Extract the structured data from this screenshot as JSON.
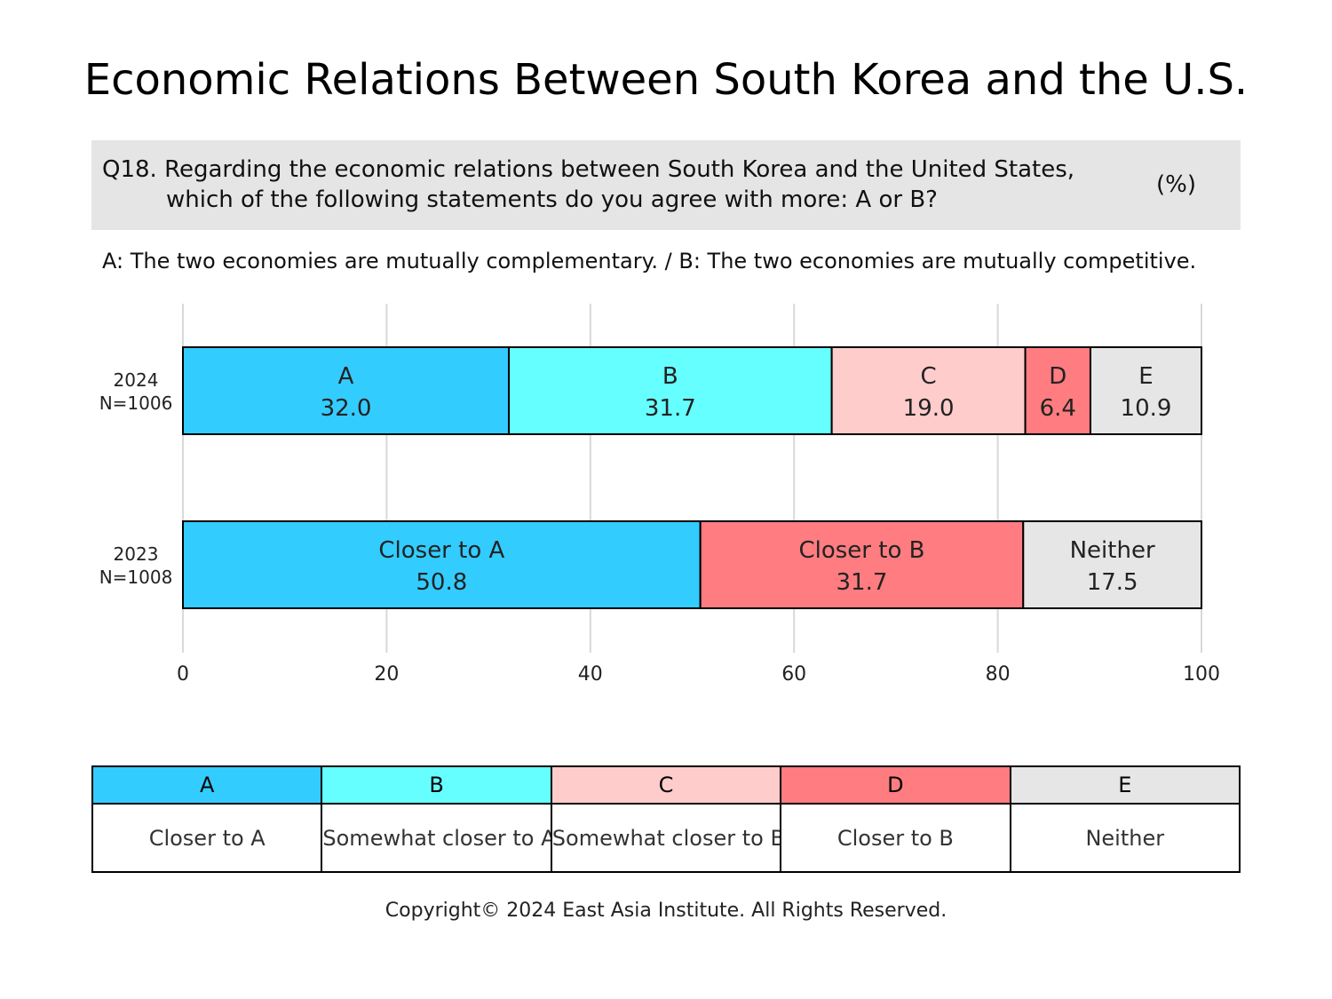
{
  "title": "Economic Relations Between South Korea and the U.S.",
  "question": {
    "line1": "Q18. Regarding the economic relations between South Korea and the United States,",
    "line2": "which of the following statements do you agree with more: A or B?",
    "unit": "(%)"
  },
  "subtitle": "A: The two economies are mutually complementary. / B: The two economies are mutually competitive.",
  "colors": {
    "A": "#33ccff",
    "B": "#66ffff",
    "C": "#ffcccc",
    "D": "#ff7c80",
    "E": "#e7e6e6"
  },
  "legend": {
    "headers": [
      "A",
      "B",
      "C",
      "D",
      "E"
    ],
    "descriptions": [
      "Closer to A",
      "Somewhat closer to A",
      "Somewhat closer to B",
      "Closer to B",
      "Neither"
    ]
  },
  "copyright": "Copyright© 2024 East Asia Institute. All Rights Reserved.",
  "chart_data": {
    "type": "bar",
    "orientation": "horizontal",
    "stacked": true,
    "xlim": [
      0,
      100
    ],
    "xticks": [
      0,
      20,
      40,
      60,
      80,
      100
    ],
    "grid": true,
    "rows": [
      {
        "label_line1": "2024",
        "label_line2": "N=1006",
        "segments": [
          {
            "label": "A",
            "value": 32.0,
            "value_text": "32.0",
            "color": "#33ccff"
          },
          {
            "label": "B",
            "value": 31.7,
            "value_text": "31.7",
            "color": "#66ffff"
          },
          {
            "label": "C",
            "value": 19.0,
            "value_text": "19.0",
            "color": "#ffcccc"
          },
          {
            "label": "D",
            "value": 6.4,
            "value_text": "6.4",
            "color": "#ff7c80"
          },
          {
            "label": "E",
            "value": 10.9,
            "value_text": "10.9",
            "color": "#e7e6e6"
          }
        ]
      },
      {
        "label_line1": "2023",
        "label_line2": "N=1008",
        "segments": [
          {
            "label": "Closer to A",
            "value": 50.8,
            "value_text": "50.8",
            "color": "#33ccff"
          },
          {
            "label": "Closer to B",
            "value": 31.7,
            "value_text": "31.7",
            "color": "#ff7c80"
          },
          {
            "label": "Neither",
            "value": 17.5,
            "value_text": "17.5",
            "color": "#e7e6e6"
          }
        ]
      }
    ]
  }
}
